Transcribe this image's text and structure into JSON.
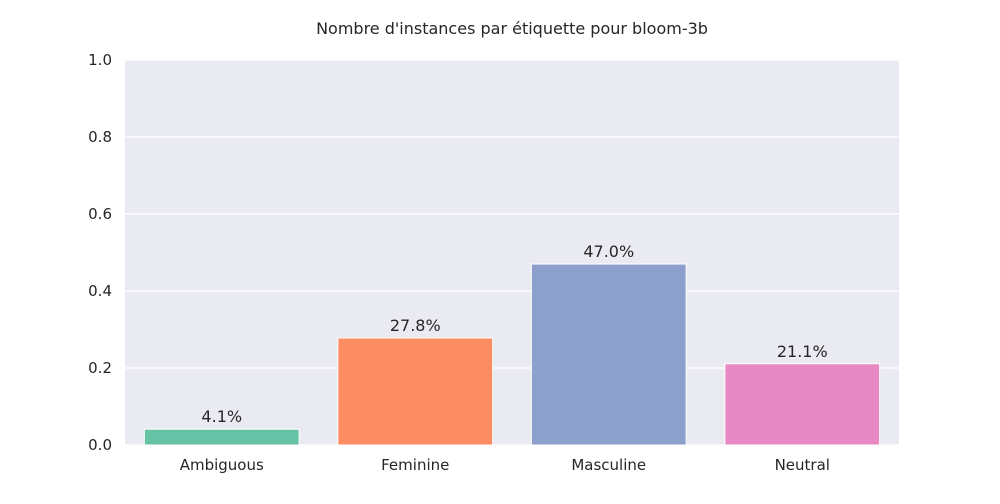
{
  "chart_data": {
    "type": "bar",
    "title": "Nombre d'instances par étiquette pour bloom-3b",
    "xlabel": "",
    "ylabel": "",
    "categories": [
      "Ambiguous",
      "Feminine",
      "Masculine",
      "Neutral"
    ],
    "values": [
      0.041,
      0.278,
      0.47,
      0.211
    ],
    "data_labels": [
      "4.1%",
      "27.8%",
      "47.0%",
      "21.1%"
    ],
    "ylim": [
      0,
      1.0
    ],
    "yticks": [
      0.0,
      0.2,
      0.4,
      0.6,
      0.8,
      1.0
    ],
    "ytick_labels": [
      "0.0",
      "0.2",
      "0.4",
      "0.6",
      "0.8",
      "1.0"
    ],
    "grid": true,
    "colors": [
      "#66c2a5",
      "#fc8d62",
      "#8da0cb",
      "#e78ac3"
    ],
    "background": "#eaeaf2"
  }
}
